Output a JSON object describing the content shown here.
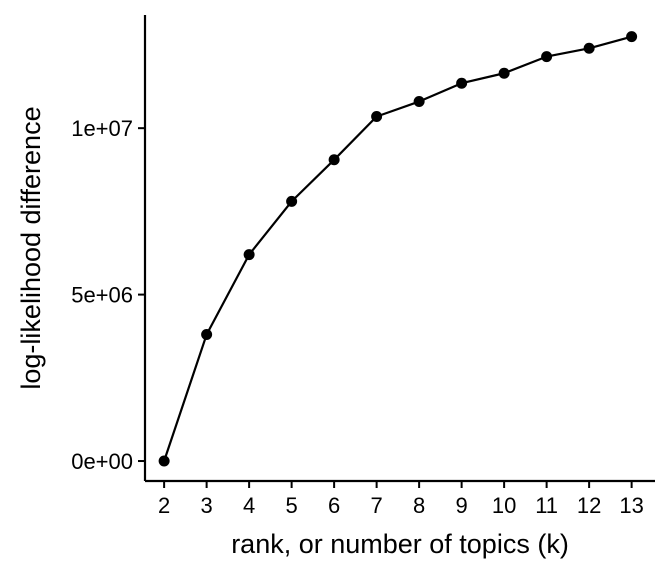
{
  "chart_data": {
    "type": "line",
    "title": "",
    "xlabel": "rank, or number of topics (k)",
    "ylabel": "log-likelihood difference",
    "x": [
      2,
      3,
      4,
      5,
      6,
      7,
      8,
      9,
      10,
      11,
      12,
      13
    ],
    "series": [
      {
        "values": [
          0,
          3800000,
          6200000,
          7800000,
          9050000,
          10350000,
          10800000,
          11350000,
          11650000,
          12150000,
          12400000,
          12750000
        ]
      }
    ],
    "x_ticks": [
      "2",
      "3",
      "4",
      "5",
      "6",
      "7",
      "8",
      "9",
      "10",
      "11",
      "12",
      "13"
    ],
    "y_ticks": [
      {
        "value": 0,
        "label": "0e+00"
      },
      {
        "value": 5000000,
        "label": "5e+06"
      },
      {
        "value": 10000000,
        "label": "1e+07"
      }
    ],
    "xlim": [
      1.55,
      13.55
    ],
    "ylim": [
      -600000,
      13400000
    ],
    "grid": false,
    "legend": "none",
    "colors": {
      "line": "#000000",
      "points": "#000000",
      "axis": "#000000"
    }
  }
}
